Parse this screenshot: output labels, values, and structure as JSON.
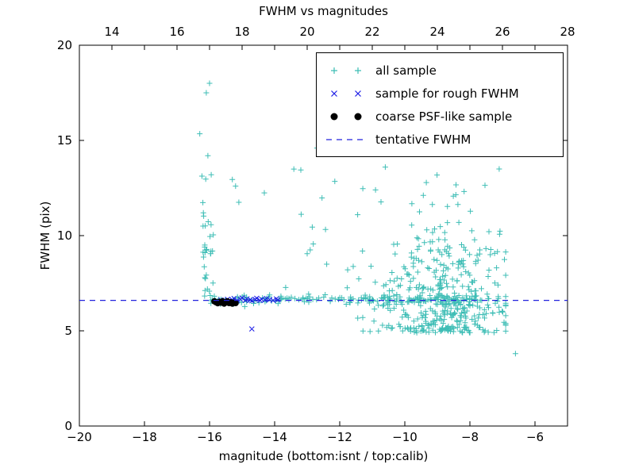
{
  "figure": {
    "background": "#ffffff"
  },
  "chart_data": {
    "type": "scatter",
    "title": "FWHM vs magnitudes",
    "xlabel": "magnitude (bottom:isnt / top:calib)",
    "ylabel": "FWHM (pix)",
    "xlim": [
      -20,
      -5
    ],
    "ylim": [
      0,
      20
    ],
    "xticks": [
      -20,
      -18,
      -16,
      -14,
      -12,
      -10,
      -8,
      -6
    ],
    "yticks": [
      0,
      5,
      10,
      15,
      20
    ],
    "top_axis": {
      "lim": [
        13,
        28
      ],
      "ticks": [
        14,
        16,
        18,
        20,
        22,
        24,
        26,
        28
      ]
    },
    "grid": false,
    "legend_position": "upper right",
    "tentative_fwhm_y": 6.6,
    "series": [
      {
        "name": "all sample",
        "marker": "plus",
        "color": "#3dbdb5",
        "clusters": [
          {
            "kind": "strip",
            "n": 30,
            "x_mean": -16.05,
            "x_sd": 0.12,
            "y_base": 6.35,
            "y_scale": 3.0,
            "y_max": 17.0,
            "seed": 11
          },
          {
            "kind": "band",
            "n": 165,
            "x_min": -16.0,
            "x_max": -7.1,
            "y_mean": 6.65,
            "y_sd": 0.12,
            "seed": 22
          },
          {
            "kind": "cloud",
            "n": 430,
            "x_mean": -8.9,
            "x_sd": 1.05,
            "x_min": -11.8,
            "x_max": -6.9,
            "y_base": 4.9,
            "y_scale": 2.6,
            "y_max": 15.6,
            "seed": 33
          },
          {
            "kind": "uniform",
            "n": 14,
            "x_min": -14.6,
            "x_max": -11.2,
            "y_min": 7.2,
            "y_max": 13.5,
            "seed": 44
          }
        ],
        "points": [
          [
            -16.1,
            17.5
          ],
          [
            -16.0,
            18.0
          ],
          [
            -16.3,
            15.35
          ],
          [
            -16.05,
            14.2
          ],
          [
            -15.95,
            13.2
          ],
          [
            -15.3,
            12.95
          ],
          [
            -15.2,
            12.6
          ],
          [
            -15.1,
            11.75
          ],
          [
            -16.2,
            10.5
          ],
          [
            -16.15,
            9.4
          ],
          [
            -12.7,
            14.6
          ],
          [
            -12.15,
            12.85
          ],
          [
            -11.45,
            11.1
          ],
          [
            -13.0,
            9.05
          ],
          [
            -12.4,
            8.5
          ],
          [
            -10.9,
            12.4
          ],
          [
            -10.6,
            13.6
          ],
          [
            -7.1,
            13.5
          ],
          [
            -7.0,
            14.6
          ],
          [
            -6.6,
            3.8
          ],
          [
            -9.0,
            15.5
          ],
          [
            -9.3,
            15.2
          ],
          [
            -8.6,
            14.9
          ]
        ]
      },
      {
        "name": "sample for rough FWHM",
        "marker": "x",
        "color": "#1a1ae6",
        "points": [
          [
            -15.65,
            6.62
          ],
          [
            -15.55,
            6.6
          ],
          [
            -15.45,
            6.66
          ],
          [
            -15.4,
            6.58
          ],
          [
            -15.3,
            6.63
          ],
          [
            -15.25,
            6.7
          ],
          [
            -15.15,
            6.6
          ],
          [
            -15.05,
            6.66
          ],
          [
            -15.0,
            6.73
          ],
          [
            -14.9,
            6.6
          ],
          [
            -14.85,
            6.68
          ],
          [
            -14.75,
            6.62
          ],
          [
            -14.7,
            6.58
          ],
          [
            -14.6,
            6.65
          ],
          [
            -14.55,
            6.71
          ],
          [
            -14.45,
            6.6
          ],
          [
            -14.4,
            6.66
          ],
          [
            -14.3,
            6.62
          ],
          [
            -14.25,
            6.7
          ],
          [
            -14.15,
            6.64
          ],
          [
            -14.05,
            6.6
          ],
          [
            -13.95,
            6.68
          ],
          [
            -13.9,
            6.63
          ],
          [
            -14.7,
            5.1
          ]
        ]
      },
      {
        "name": "coarse PSF-like sample",
        "marker": "dot",
        "color": "#000000",
        "points": [
          [
            -15.85,
            6.55
          ],
          [
            -15.8,
            6.5
          ],
          [
            -15.75,
            6.45
          ],
          [
            -15.7,
            6.52
          ],
          [
            -15.65,
            6.48
          ],
          [
            -15.6,
            6.55
          ],
          [
            -15.55,
            6.43
          ],
          [
            -15.5,
            6.5
          ],
          [
            -15.45,
            6.55
          ],
          [
            -15.4,
            6.46
          ],
          [
            -15.35,
            6.5
          ],
          [
            -15.3,
            6.43
          ],
          [
            -15.25,
            6.48
          ],
          [
            -15.2,
            6.46
          ]
        ]
      },
      {
        "name": "tentative FWHM",
        "marker": "dashed-line",
        "color": "#2222dd",
        "y": 6.6
      }
    ]
  }
}
